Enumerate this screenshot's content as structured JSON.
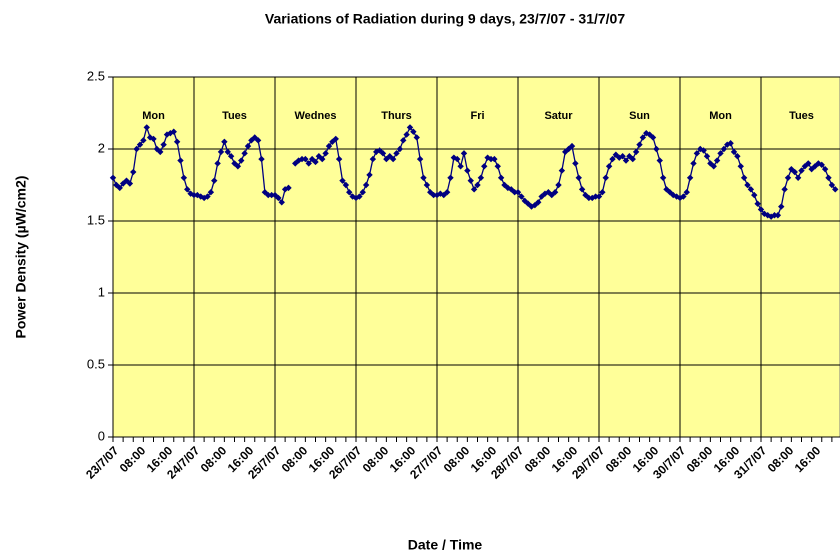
{
  "chart_data": {
    "type": "line",
    "title": "Variations of Radiation during 9 days, 23/7/07 - 31/7/07",
    "x_label": "Date / Time",
    "y_label": "Power Density (µW/cm2)",
    "annotations": [
      "Mon",
      "Tues",
      "Wednes",
      "Thurs",
      "Fri",
      "Satur",
      "Sun",
      "Mon",
      "Tues"
    ],
    "categories": [
      "23/7/07",
      null,
      null,
      null,
      null,
      null,
      null,
      null,
      "08:00",
      null,
      null,
      null,
      null,
      null,
      null,
      null,
      "16:00",
      null,
      null,
      null,
      null,
      null,
      null,
      null,
      "24/7/07",
      null,
      null,
      null,
      null,
      null,
      null,
      null,
      "08:00",
      null,
      null,
      null,
      null,
      null,
      null,
      null,
      "16:00",
      null,
      null,
      null,
      null,
      null,
      null,
      null,
      "25/7/07",
      null,
      null,
      null,
      null,
      null,
      null,
      null,
      "08:00",
      null,
      null,
      null,
      null,
      null,
      null,
      null,
      "16:00",
      null,
      null,
      null,
      null,
      null,
      null,
      null,
      "26/7/07",
      null,
      null,
      null,
      null,
      null,
      null,
      null,
      "08:00",
      null,
      null,
      null,
      null,
      null,
      null,
      null,
      "16:00",
      null,
      null,
      null,
      null,
      null,
      null,
      null,
      "27/7/07",
      null,
      null,
      null,
      null,
      null,
      null,
      null,
      "08:00",
      null,
      null,
      null,
      null,
      null,
      null,
      null,
      "16:00",
      null,
      null,
      null,
      null,
      null,
      null,
      null,
      "28/7/07",
      null,
      null,
      null,
      null,
      null,
      null,
      null,
      "08:00",
      null,
      null,
      null,
      null,
      null,
      null,
      null,
      "16:00",
      null,
      null,
      null,
      null,
      null,
      null,
      null,
      "29/7/07",
      null,
      null,
      null,
      null,
      null,
      null,
      null,
      "08:00",
      null,
      null,
      null,
      null,
      null,
      null,
      null,
      "16:00",
      null,
      null,
      null,
      null,
      null,
      null,
      null,
      "30/7/07",
      null,
      null,
      null,
      null,
      null,
      null,
      null,
      "08:00",
      null,
      null,
      null,
      null,
      null,
      null,
      null,
      "16:00",
      null,
      null,
      null,
      null,
      null,
      null,
      null,
      "31/7/07",
      null,
      null,
      null,
      null,
      null,
      null,
      null,
      "08:00",
      null,
      null,
      null,
      null,
      null,
      null,
      null,
      "16:00",
      null,
      null,
      null,
      null,
      null,
      null
    ],
    "series": [
      {
        "name": "Power Density",
        "color": "#000080",
        "values": [
          1.8,
          1.75,
          1.73,
          1.76,
          1.78,
          1.76,
          1.84,
          2.0,
          2.03,
          2.06,
          2.15,
          2.08,
          2.07,
          2.0,
          1.98,
          2.03,
          2.1,
          2.11,
          2.12,
          2.05,
          1.92,
          1.8,
          1.72,
          1.69,
          1.68,
          1.68,
          1.67,
          1.66,
          1.67,
          1.7,
          1.78,
          1.9,
          1.98,
          2.05,
          1.98,
          1.95,
          1.9,
          1.88,
          1.92,
          1.97,
          2.02,
          2.06,
          2.08,
          2.06,
          1.93,
          1.7,
          1.68,
          1.68,
          1.68,
          1.66,
          1.63,
          1.72,
          1.73,
          null,
          1.9,
          1.92,
          1.93,
          1.93,
          1.9,
          1.93,
          1.91,
          1.95,
          1.93,
          1.97,
          2.02,
          2.05,
          2.07,
          1.93,
          1.78,
          1.75,
          1.7,
          1.67,
          1.66,
          1.67,
          1.7,
          1.75,
          1.82,
          1.93,
          1.98,
          1.99,
          1.97,
          1.93,
          1.95,
          1.93,
          1.97,
          2.0,
          2.06,
          2.1,
          2.15,
          2.12,
          2.08,
          1.93,
          1.8,
          1.75,
          1.7,
          1.68,
          1.68,
          1.69,
          1.68,
          1.7,
          1.8,
          1.94,
          1.93,
          1.88,
          1.97,
          1.85,
          1.78,
          1.72,
          1.75,
          1.8,
          1.88,
          1.94,
          1.93,
          1.93,
          1.88,
          1.8,
          1.75,
          1.73,
          1.72,
          1.7,
          1.7,
          1.67,
          1.64,
          1.62,
          1.6,
          1.61,
          1.63,
          1.67,
          1.69,
          1.7,
          1.68,
          1.7,
          1.75,
          1.85,
          1.98,
          2.0,
          2.02,
          1.9,
          1.8,
          1.72,
          1.68,
          1.66,
          1.66,
          1.67,
          1.67,
          1.7,
          1.8,
          1.88,
          1.93,
          1.96,
          1.94,
          1.95,
          1.92,
          1.95,
          1.93,
          1.98,
          2.03,
          2.08,
          2.11,
          2.1,
          2.08,
          2.0,
          1.92,
          1.8,
          1.72,
          1.7,
          1.68,
          1.67,
          1.66,
          1.67,
          1.7,
          1.8,
          1.9,
          1.97,
          2.0,
          1.99,
          1.95,
          1.9,
          1.88,
          1.92,
          1.97,
          2.0,
          2.03,
          2.04,
          1.98,
          1.95,
          1.88,
          1.8,
          1.75,
          1.72,
          1.68,
          1.62,
          1.58,
          1.55,
          1.54,
          1.53,
          1.54,
          1.54,
          1.6,
          1.72,
          1.8,
          1.86,
          1.84,
          1.8,
          1.85,
          1.88,
          1.9,
          1.86,
          1.88,
          1.9,
          1.89,
          1.86,
          1.8,
          1.75,
          1.72
        ]
      }
    ],
    "ylim": [
      0,
      2.5
    ],
    "yticks": [
      0,
      0.5,
      1,
      1.5,
      2,
      2.5
    ],
    "grid": true,
    "background": "#ffff99"
  }
}
